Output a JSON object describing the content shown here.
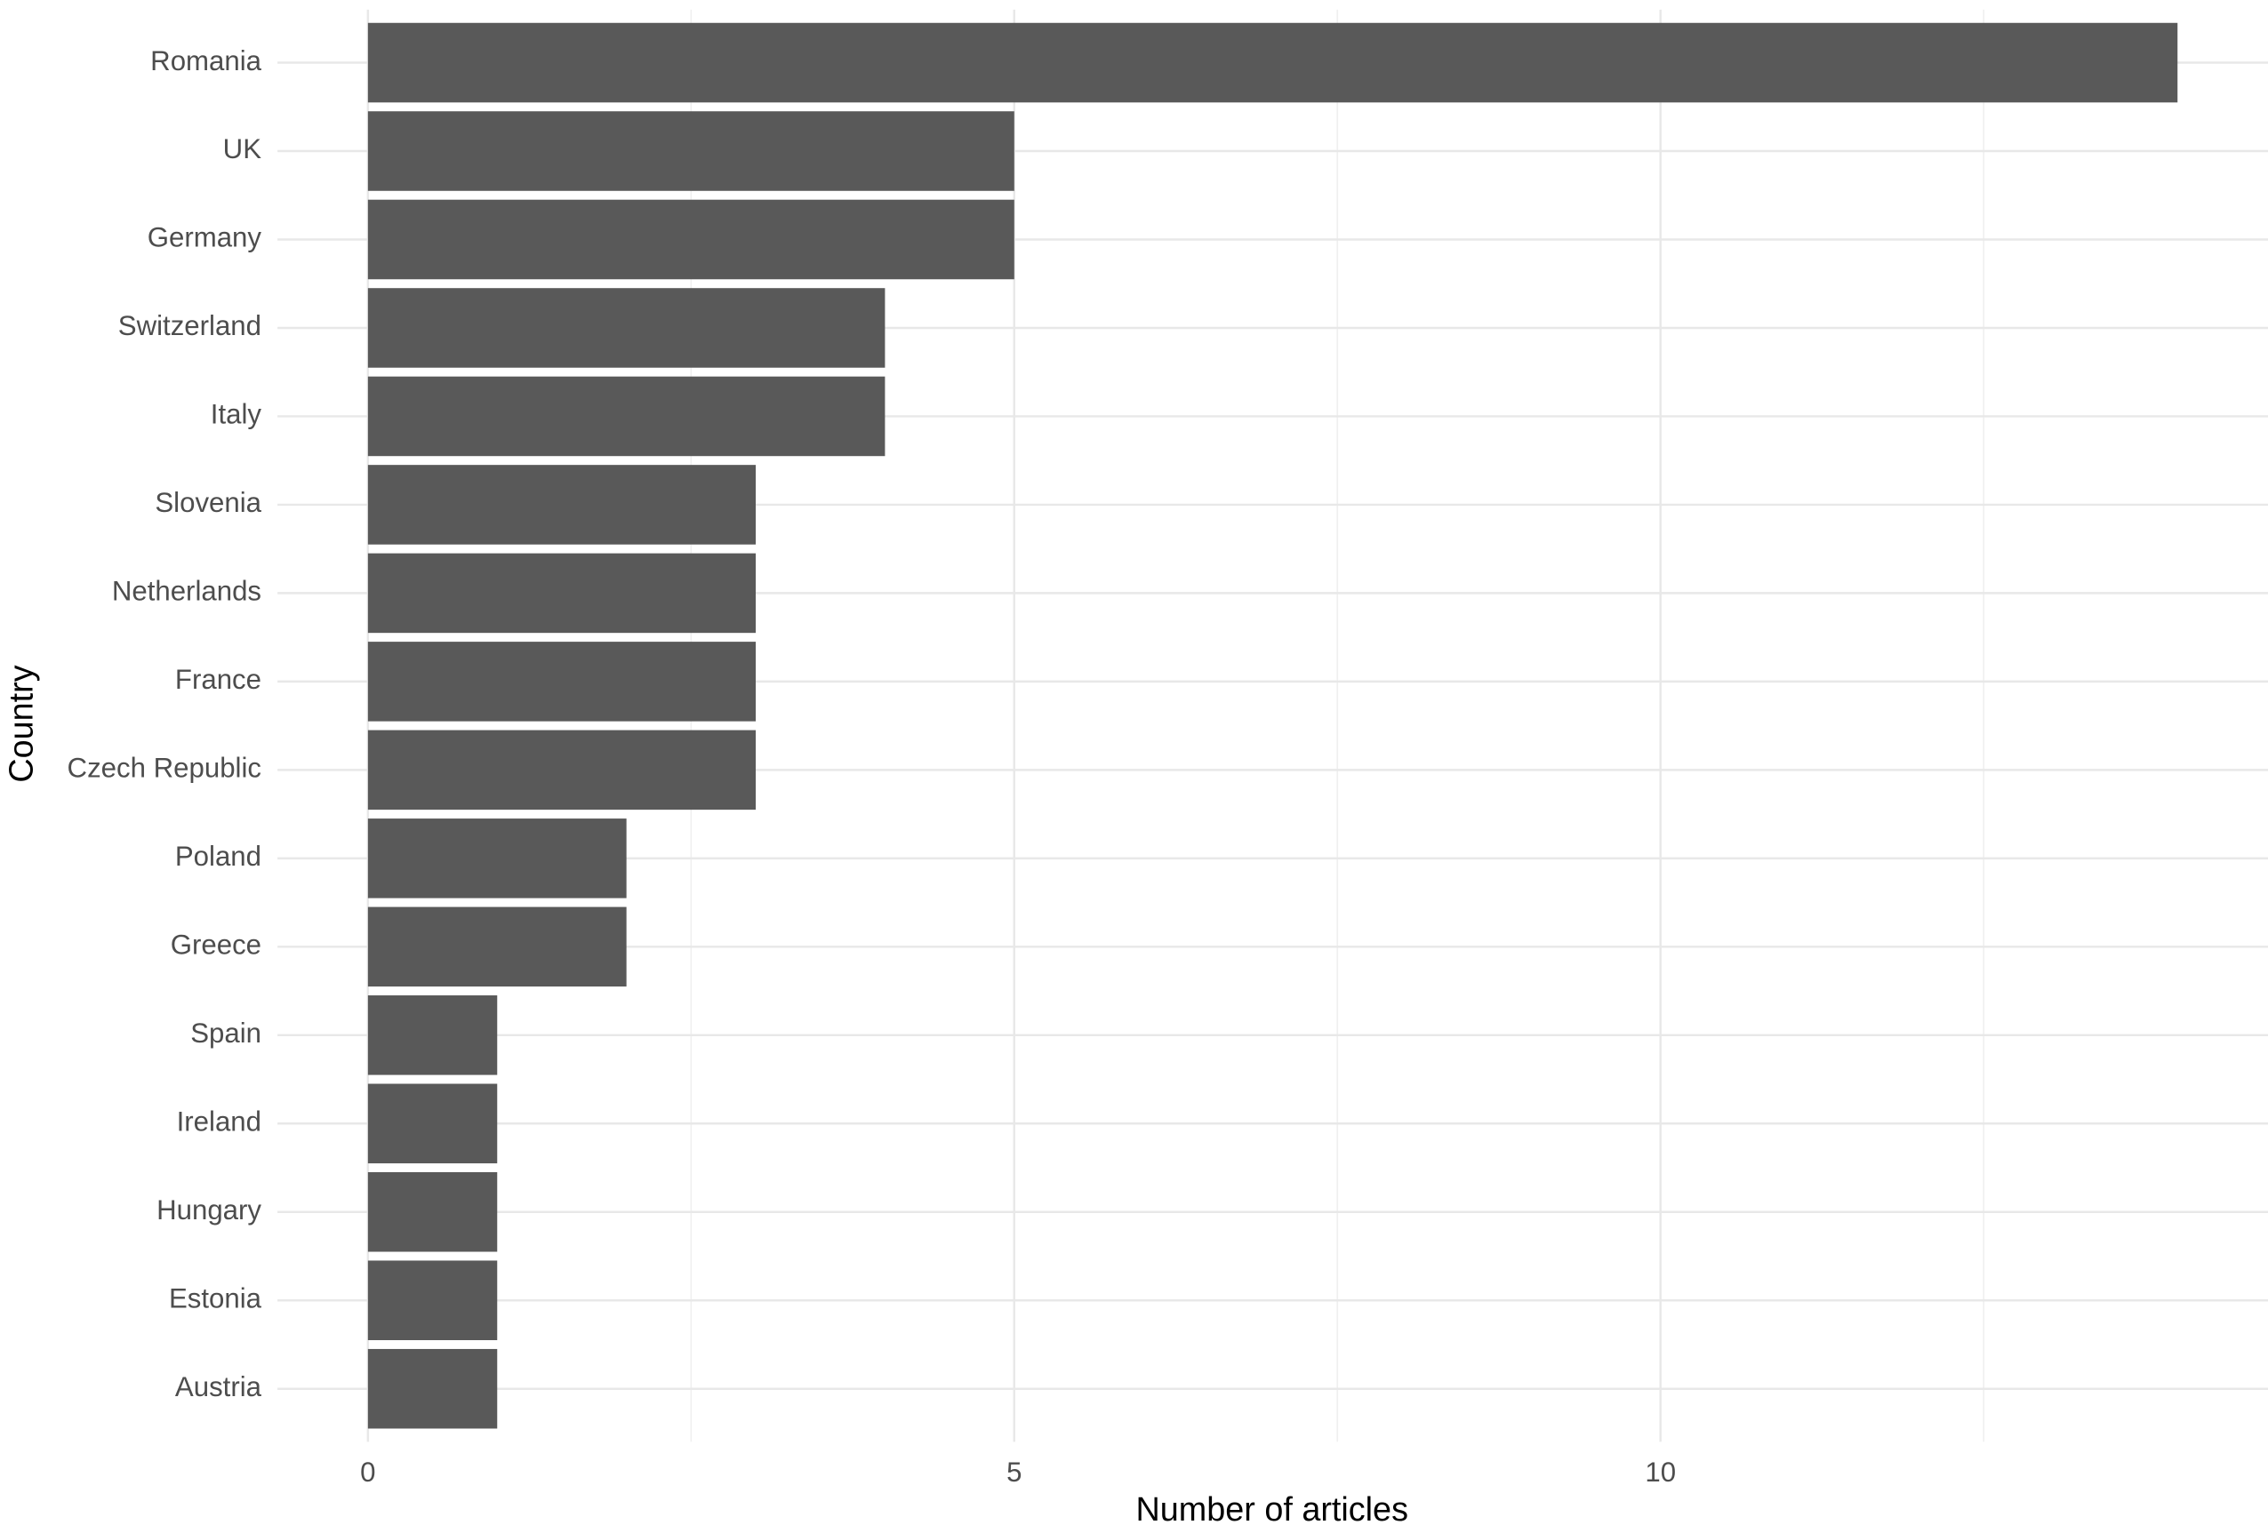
{
  "chart_data": {
    "type": "bar",
    "orientation": "horizontal",
    "x_label": "Number of articles",
    "y_label": "Country",
    "categories": [
      "Romania",
      "UK",
      "Germany",
      "Switzerland",
      "Italy",
      "Slovenia",
      "Netherlands",
      "France",
      "Czech Republic",
      "Poland",
      "Greece",
      "Spain",
      "Ireland",
      "Hungary",
      "Estonia",
      "Austria"
    ],
    "values": [
      14,
      5,
      5,
      4,
      4,
      3,
      3,
      3,
      3,
      2,
      2,
      1,
      1,
      1,
      1,
      1
    ],
    "color": "#595959",
    "xlim": [
      -0.7,
      14.7
    ],
    "xticks": [
      0,
      5,
      10
    ],
    "minor_xticks": [
      2.5,
      7.5,
      12.5
    ],
    "grid": true
  }
}
